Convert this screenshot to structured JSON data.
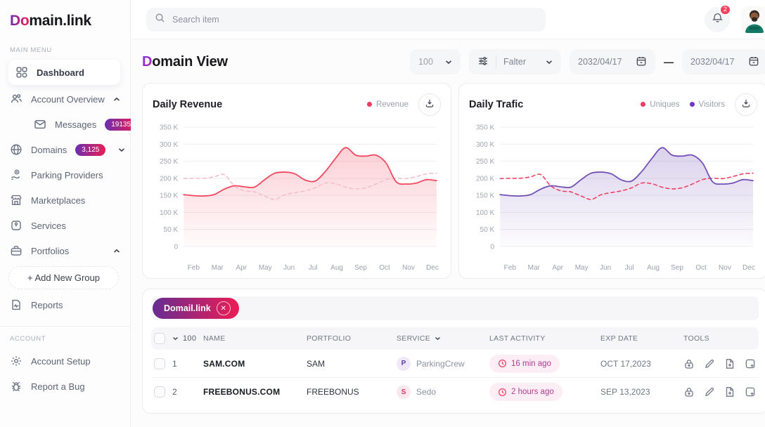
{
  "brand": {
    "logo_gradient": "Do",
    "logo_rest": "main.link"
  },
  "colors": {
    "brand_gradient_start": "#6a2fae",
    "brand_gradient_end": "#ee1c55",
    "accent_red": "#ee3b5f",
    "accent_purple": "#6d35c8",
    "notification_red": "#f4405f",
    "grid_line": "#ededf2"
  },
  "sidebar": {
    "main_menu_label": "MAIN MENU",
    "account_label": "ACCOUNT",
    "items": [
      {
        "label": "Dashboard",
        "icon": "grid",
        "active": true
      },
      {
        "label": "Account Overview",
        "icon": "users",
        "expanded": true
      },
      {
        "label": "Messages",
        "icon": "mail",
        "badge": "19135"
      },
      {
        "label": "Domains",
        "icon": "globe",
        "badge": "3,125"
      },
      {
        "label": "Parking Providers",
        "icon": "hand-coin"
      },
      {
        "label": "Marketplaces",
        "icon": "store"
      },
      {
        "label": "Services",
        "icon": "services-box"
      },
      {
        "label": "Portfolios",
        "icon": "briefcase",
        "expanded": true
      },
      {
        "label": "Reports",
        "icon": "report"
      }
    ],
    "add_group_label": "+  Add New Group",
    "account_items": [
      {
        "label": "Account Setup",
        "icon": "gear"
      },
      {
        "label": "Report a Bug",
        "icon": "bug"
      }
    ]
  },
  "topbar": {
    "search_placeholder": "Search item",
    "notification_count": "2"
  },
  "page": {
    "title_d": "D",
    "title_rest": "omain View"
  },
  "controls": {
    "page_size": "100",
    "filter_label": "Falter",
    "date_from": "2032/04/17",
    "date_sep": "—",
    "date_to": "2032/04/17"
  },
  "chart_data": [
    {
      "type": "area",
      "title": "Daily Revenue",
      "categories": [
        "Feb",
        "Mar",
        "Apr",
        "May",
        "Jun",
        "Jul",
        "Aug",
        "Sep",
        "Oct",
        "Nov",
        "Dec"
      ],
      "yticks": [
        "0",
        "50 K",
        "100 K",
        "150 K",
        "200 K",
        "250 K",
        "300 K",
        "350 K"
      ],
      "ylim_k": [
        0,
        350
      ],
      "grid": true,
      "legend_position": "top-right",
      "legend": [
        {
          "label": "Revenue",
          "color": "#ee3b5f"
        }
      ],
      "series": [
        {
          "name": "Revenue",
          "style": "solid",
          "color": "#f2485f",
          "fill": true,
          "values_k": [
            152,
            149,
            148,
            152,
            168,
            178,
            175,
            174,
            196,
            215,
            218,
            213,
            195,
            192,
            220,
            258,
            290,
            268,
            265,
            268,
            245,
            190,
            183,
            186,
            196,
            193
          ]
        },
        {
          "name": "Revenue (dashed comparison)",
          "style": "dashed",
          "color": "#f6bccb",
          "fill": false,
          "values_k": [
            199,
            200,
            200,
            204,
            211,
            178,
            163,
            160,
            148,
            138,
            152,
            158,
            163,
            172,
            186,
            184,
            174,
            169,
            172,
            183,
            196,
            200,
            199,
            205,
            213,
            215
          ]
        }
      ]
    },
    {
      "type": "area",
      "title": "Daily Trafic",
      "categories": [
        "Feb",
        "Mar",
        "Apr",
        "May",
        "Jun",
        "Jul",
        "Aug",
        "Sep",
        "Oct",
        "Nov",
        "Dec"
      ],
      "yticks": [
        "0",
        "50 K",
        "100 K",
        "150 K",
        "200 K",
        "250 K",
        "300 K",
        "350 K"
      ],
      "ylim_k": [
        0,
        350
      ],
      "grid": true,
      "legend_position": "top-right",
      "legend": [
        {
          "label": "Uniques",
          "color": "#ee3b5f"
        },
        {
          "label": "Visitors",
          "color": "#6d35c8"
        }
      ],
      "series": [
        {
          "name": "Visitors",
          "style": "solid",
          "color": "#7450b5",
          "fill": true,
          "values_k": [
            152,
            149,
            148,
            152,
            168,
            178,
            175,
            174,
            196,
            215,
            218,
            213,
            195,
            192,
            220,
            258,
            290,
            268,
            265,
            268,
            245,
            190,
            183,
            186,
            196,
            193
          ]
        },
        {
          "name": "Uniques",
          "style": "dashed",
          "color": "#ee3b5f",
          "fill": false,
          "values_k": [
            199,
            200,
            200,
            204,
            211,
            178,
            163,
            160,
            148,
            138,
            152,
            158,
            163,
            172,
            186,
            184,
            174,
            169,
            172,
            183,
            196,
            200,
            199,
            205,
            213,
            215
          ]
        }
      ]
    }
  ],
  "table": {
    "chip_label": "Domail.link",
    "header_count": "100",
    "columns": [
      "NAME",
      "PORTFOLIO",
      "SERVICE",
      "LAST ACTIVITY",
      "EXP DATE",
      "TOOLS"
    ],
    "rows": [
      {
        "num": "1",
        "name": "SAM.COM",
        "portfolio": "SAM",
        "service_initial": "P",
        "service": "ParkingCrew",
        "activity": "16 min ago",
        "exp": "OCT 17,2023"
      },
      {
        "num": "2",
        "name": "FREEBONUS.COM",
        "portfolio": "FREEBONUS",
        "service_initial": "S",
        "service": "Sedo",
        "activity": "2 hours ago",
        "exp": "SEP 13,2023"
      }
    ]
  }
}
